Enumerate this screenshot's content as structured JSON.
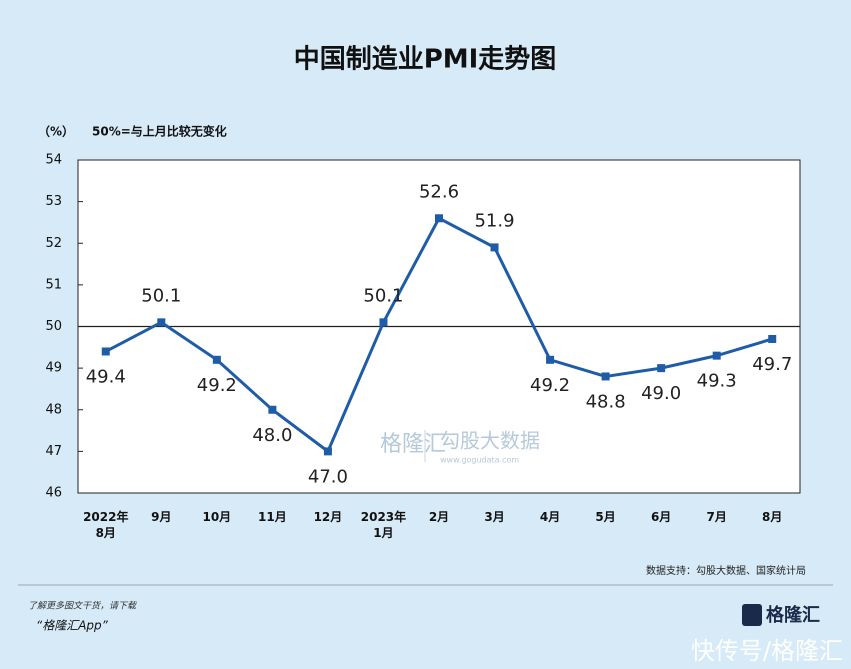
{
  "chart_data": {
    "type": "line",
    "title": "中国制造业PMI走势图",
    "y_unit": "（%）",
    "annotation": "50%=与上月比较无变化",
    "categories": [
      "2022年\n8月",
      "9月",
      "10月",
      "11月",
      "12月",
      "2023年\n1月",
      "2月",
      "3月",
      "4月",
      "5月",
      "6月",
      "7月",
      "8月"
    ],
    "series": [
      {
        "name": "PMI",
        "color": "#1f5ca8",
        "values": [
          49.4,
          50.1,
          49.2,
          48.0,
          47.0,
          50.1,
          52.6,
          51.9,
          49.2,
          48.8,
          49.0,
          49.3,
          49.7
        ],
        "value_labels": [
          "49.4",
          "50.1",
          "49.2",
          "48.0",
          "47.0",
          "50.1",
          "52.6",
          "51.9",
          "49.2",
          "48.8",
          "49.0",
          "49.3",
          "49.7"
        ]
      }
    ],
    "ylim": [
      46,
      54
    ],
    "yticks": [
      46,
      47,
      48,
      49,
      50,
      51,
      52,
      53,
      54
    ],
    "reference_line": 50,
    "grid": false
  },
  "source": "数据支持：勾股大数据、国家统计局",
  "watermark": {
    "brand": "格隆汇",
    "partner": "勾股大数据",
    "site": "www.gogudata.com"
  },
  "footer": {
    "prompt": "了解更多图文干货，请下载",
    "app": "“格隆汇App”",
    "logo": "格隆汇",
    "credit": "快传号/格隆汇"
  }
}
